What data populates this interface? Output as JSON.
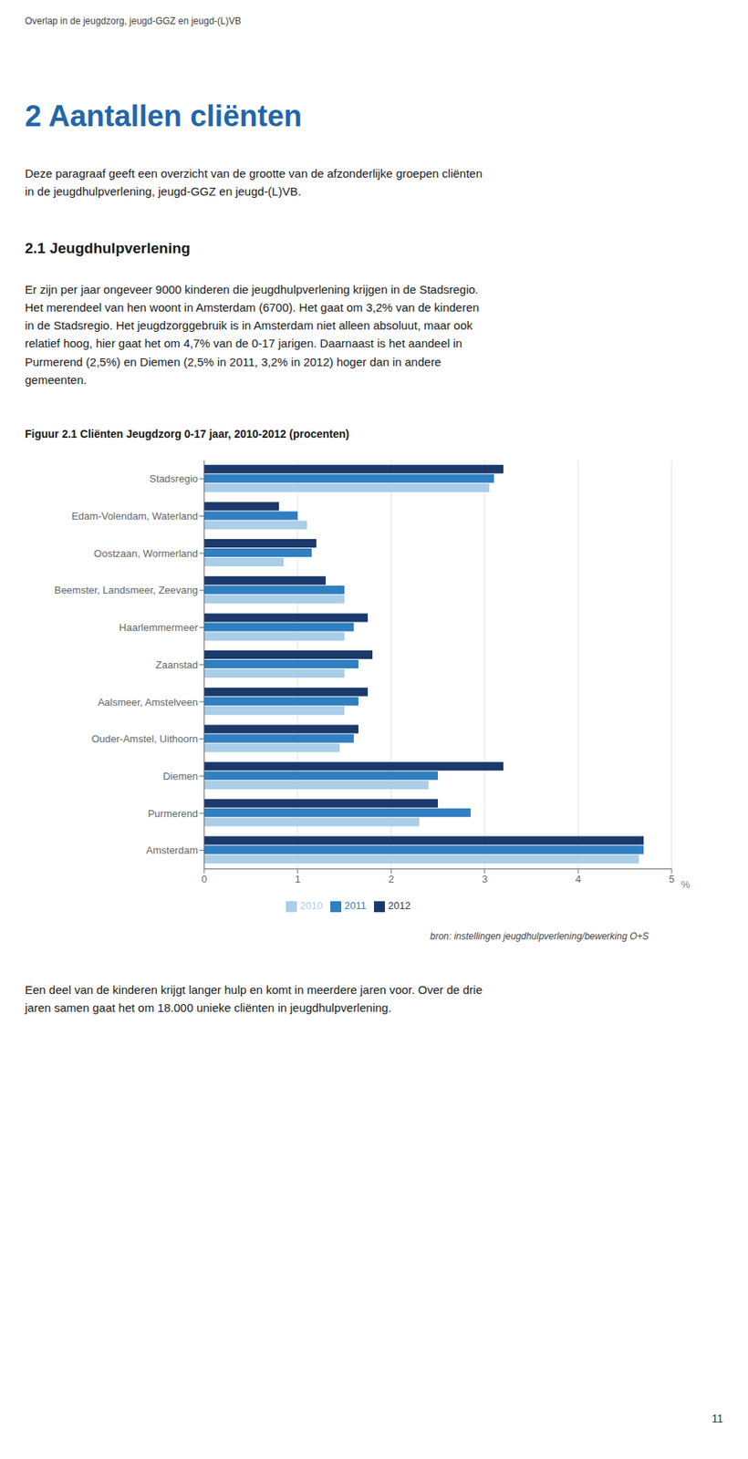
{
  "chart_data": {
    "type": "bar",
    "orientation": "horizontal",
    "title": "Figuur 2.1  Cliënten Jeugdzorg 0-17 jaar, 2010-2012 (procenten)",
    "xlabel": "%",
    "annotations": [
      "Overlap in de jeugdzorg, jeugd-GGZ en jeugd-(L)VB",
      "2  Aantallen cliënten",
      "Deze paragraaf geeft een overzicht van de grootte van de afzonderlijke groepen cliënten\nin de jeugdhulpverlening, jeugd-GGZ en jeugd-(L)VB.",
      "2.1  Jeugdhulpverlening",
      "Er zijn per jaar ongeveer 9000 kinderen die jeugdhulpverlening krijgen in de Stadsregio.\nHet merendeel van hen woont in Amsterdam (6700). Het gaat om 3,2% van de kinderen\nin de Stadsregio. Het jeugdzorggebruik is in Amsterdam niet alleen absoluut, maar ook\nrelatief hoog, hier gaat het om 4,7% van de 0-17 jarigen. Daarnaast is het aandeel in\nPurmerend (2,5%) en Diemen (2,5% in 2011, 3,2% in 2012) hoger dan in andere\ngemeenten.",
      "bron: instellingen jeugdhulpverlening/bewerking O+S",
      "Een deel van de kinderen krijgt langer hulp en komt in meerdere jaren voor. Over de drie\njaren samen gaat het om 18.000 unieke cliënten in jeugdhulpverlening.",
      "11"
    ],
    "categories": [
      "Stadsregio",
      "Edam-Volendam, Waterland",
      "Oostzaan, Wormerland",
      "Beemster, Landsmeer, Zeevang",
      "Haarlemmermeer",
      "Zaanstad",
      "Aalsmeer, Amstelveen",
      "Ouder-Amstel, Uithoorn",
      "Diemen",
      "Purmerend",
      "Amsterdam"
    ],
    "series": [
      {
        "name": "2012",
        "color": "#1B3A6B",
        "values": [
          3.2,
          0.8,
          1.2,
          1.3,
          1.75,
          1.8,
          1.75,
          1.65,
          3.2,
          2.5,
          4.7
        ]
      },
      {
        "name": "2011",
        "color": "#2F7FC1",
        "values": [
          3.1,
          1.0,
          1.15,
          1.5,
          1.6,
          1.65,
          1.65,
          1.6,
          2.5,
          2.85,
          4.7
        ]
      },
      {
        "name": "2010",
        "color": "#AACDE8",
        "values": [
          3.05,
          1.1,
          0.85,
          1.5,
          1.5,
          1.5,
          1.5,
          1.45,
          2.4,
          2.3,
          4.65
        ]
      }
    ],
    "xlim": [
      0,
      5
    ],
    "xticks": [
      0,
      1,
      2,
      3,
      4,
      5
    ],
    "grid": true,
    "legend": "bottom"
  }
}
